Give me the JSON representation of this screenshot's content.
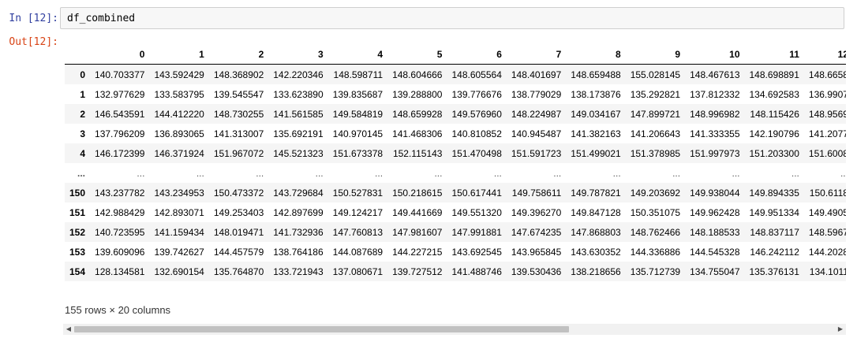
{
  "cell": {
    "in_prompt": "In [12]:",
    "out_prompt": "Out[12]:",
    "code": "df_combined"
  },
  "dataframe": {
    "columns": [
      "0",
      "1",
      "2",
      "3",
      "4",
      "5",
      "6",
      "7",
      "8",
      "9",
      "10",
      "11",
      "12"
    ],
    "rows": [
      {
        "index": "0",
        "values": [
          "140.703377",
          "143.592429",
          "148.368902",
          "142.220346",
          "148.598711",
          "148.604666",
          "148.605564",
          "148.401697",
          "148.659488",
          "155.028145",
          "148.467613",
          "148.698891",
          "148.6658"
        ]
      },
      {
        "index": "1",
        "values": [
          "132.977629",
          "133.583795",
          "139.545547",
          "133.623890",
          "139.835687",
          "139.288800",
          "139.776676",
          "138.779029",
          "138.173876",
          "135.292821",
          "137.812332",
          "134.692583",
          "136.9907"
        ]
      },
      {
        "index": "2",
        "values": [
          "146.543591",
          "144.412220",
          "148.730255",
          "141.561585",
          "149.584819",
          "148.659928",
          "149.576960",
          "148.224987",
          "149.034167",
          "147.899721",
          "148.996982",
          "148.115426",
          "148.9569"
        ]
      },
      {
        "index": "3",
        "values": [
          "137.796209",
          "136.893065",
          "141.313007",
          "135.692191",
          "140.970145",
          "141.468306",
          "140.810852",
          "140.945487",
          "141.382163",
          "141.206643",
          "141.333355",
          "142.190796",
          "141.2077"
        ]
      },
      {
        "index": "4",
        "values": [
          "146.172399",
          "146.371924",
          "151.967072",
          "145.521323",
          "151.673378",
          "152.115143",
          "151.470498",
          "151.591723",
          "151.499021",
          "151.378985",
          "151.997973",
          "151.203300",
          "151.6008"
        ]
      },
      {
        "index": "...",
        "ellipsis": true,
        "values": [
          "...",
          "...",
          "...",
          "...",
          "...",
          "...",
          "...",
          "...",
          "...",
          "...",
          "...",
          "...",
          "..."
        ]
      },
      {
        "index": "150",
        "values": [
          "143.237782",
          "143.234953",
          "150.473372",
          "143.729684",
          "150.527831",
          "150.218615",
          "150.617441",
          "149.758611",
          "149.787821",
          "149.203692",
          "149.938044",
          "149.894335",
          "150.6118"
        ]
      },
      {
        "index": "151",
        "values": [
          "142.988429",
          "142.893071",
          "149.253403",
          "142.897699",
          "149.124217",
          "149.441669",
          "149.551320",
          "149.396270",
          "149.847128",
          "150.351075",
          "149.962428",
          "149.951334",
          "149.4905"
        ]
      },
      {
        "index": "152",
        "values": [
          "140.723595",
          "141.159434",
          "148.019471",
          "141.732936",
          "147.760813",
          "147.981607",
          "147.991881",
          "147.674235",
          "147.868803",
          "148.762466",
          "148.188533",
          "148.837117",
          "148.5967"
        ]
      },
      {
        "index": "153",
        "values": [
          "139.609096",
          "139.742627",
          "144.457579",
          "138.764186",
          "144.087689",
          "144.227215",
          "143.692545",
          "143.965845",
          "143.630352",
          "144.336886",
          "144.545328",
          "146.242112",
          "144.2028"
        ]
      },
      {
        "index": "154",
        "values": [
          "128.134581",
          "132.690154",
          "135.764870",
          "133.721943",
          "137.080671",
          "139.727512",
          "141.488746",
          "139.530436",
          "138.218656",
          "135.712739",
          "134.755047",
          "135.376131",
          "134.1011"
        ]
      }
    ],
    "shape_text": "155 rows × 20 columns"
  },
  "scrollbar": {
    "left_arrow_icon": "triangle-left-icon",
    "right_arrow_icon": "triangle-right-icon",
    "left_glyph": "◀",
    "right_glyph": "▶",
    "thumb_fraction": 0.65
  }
}
